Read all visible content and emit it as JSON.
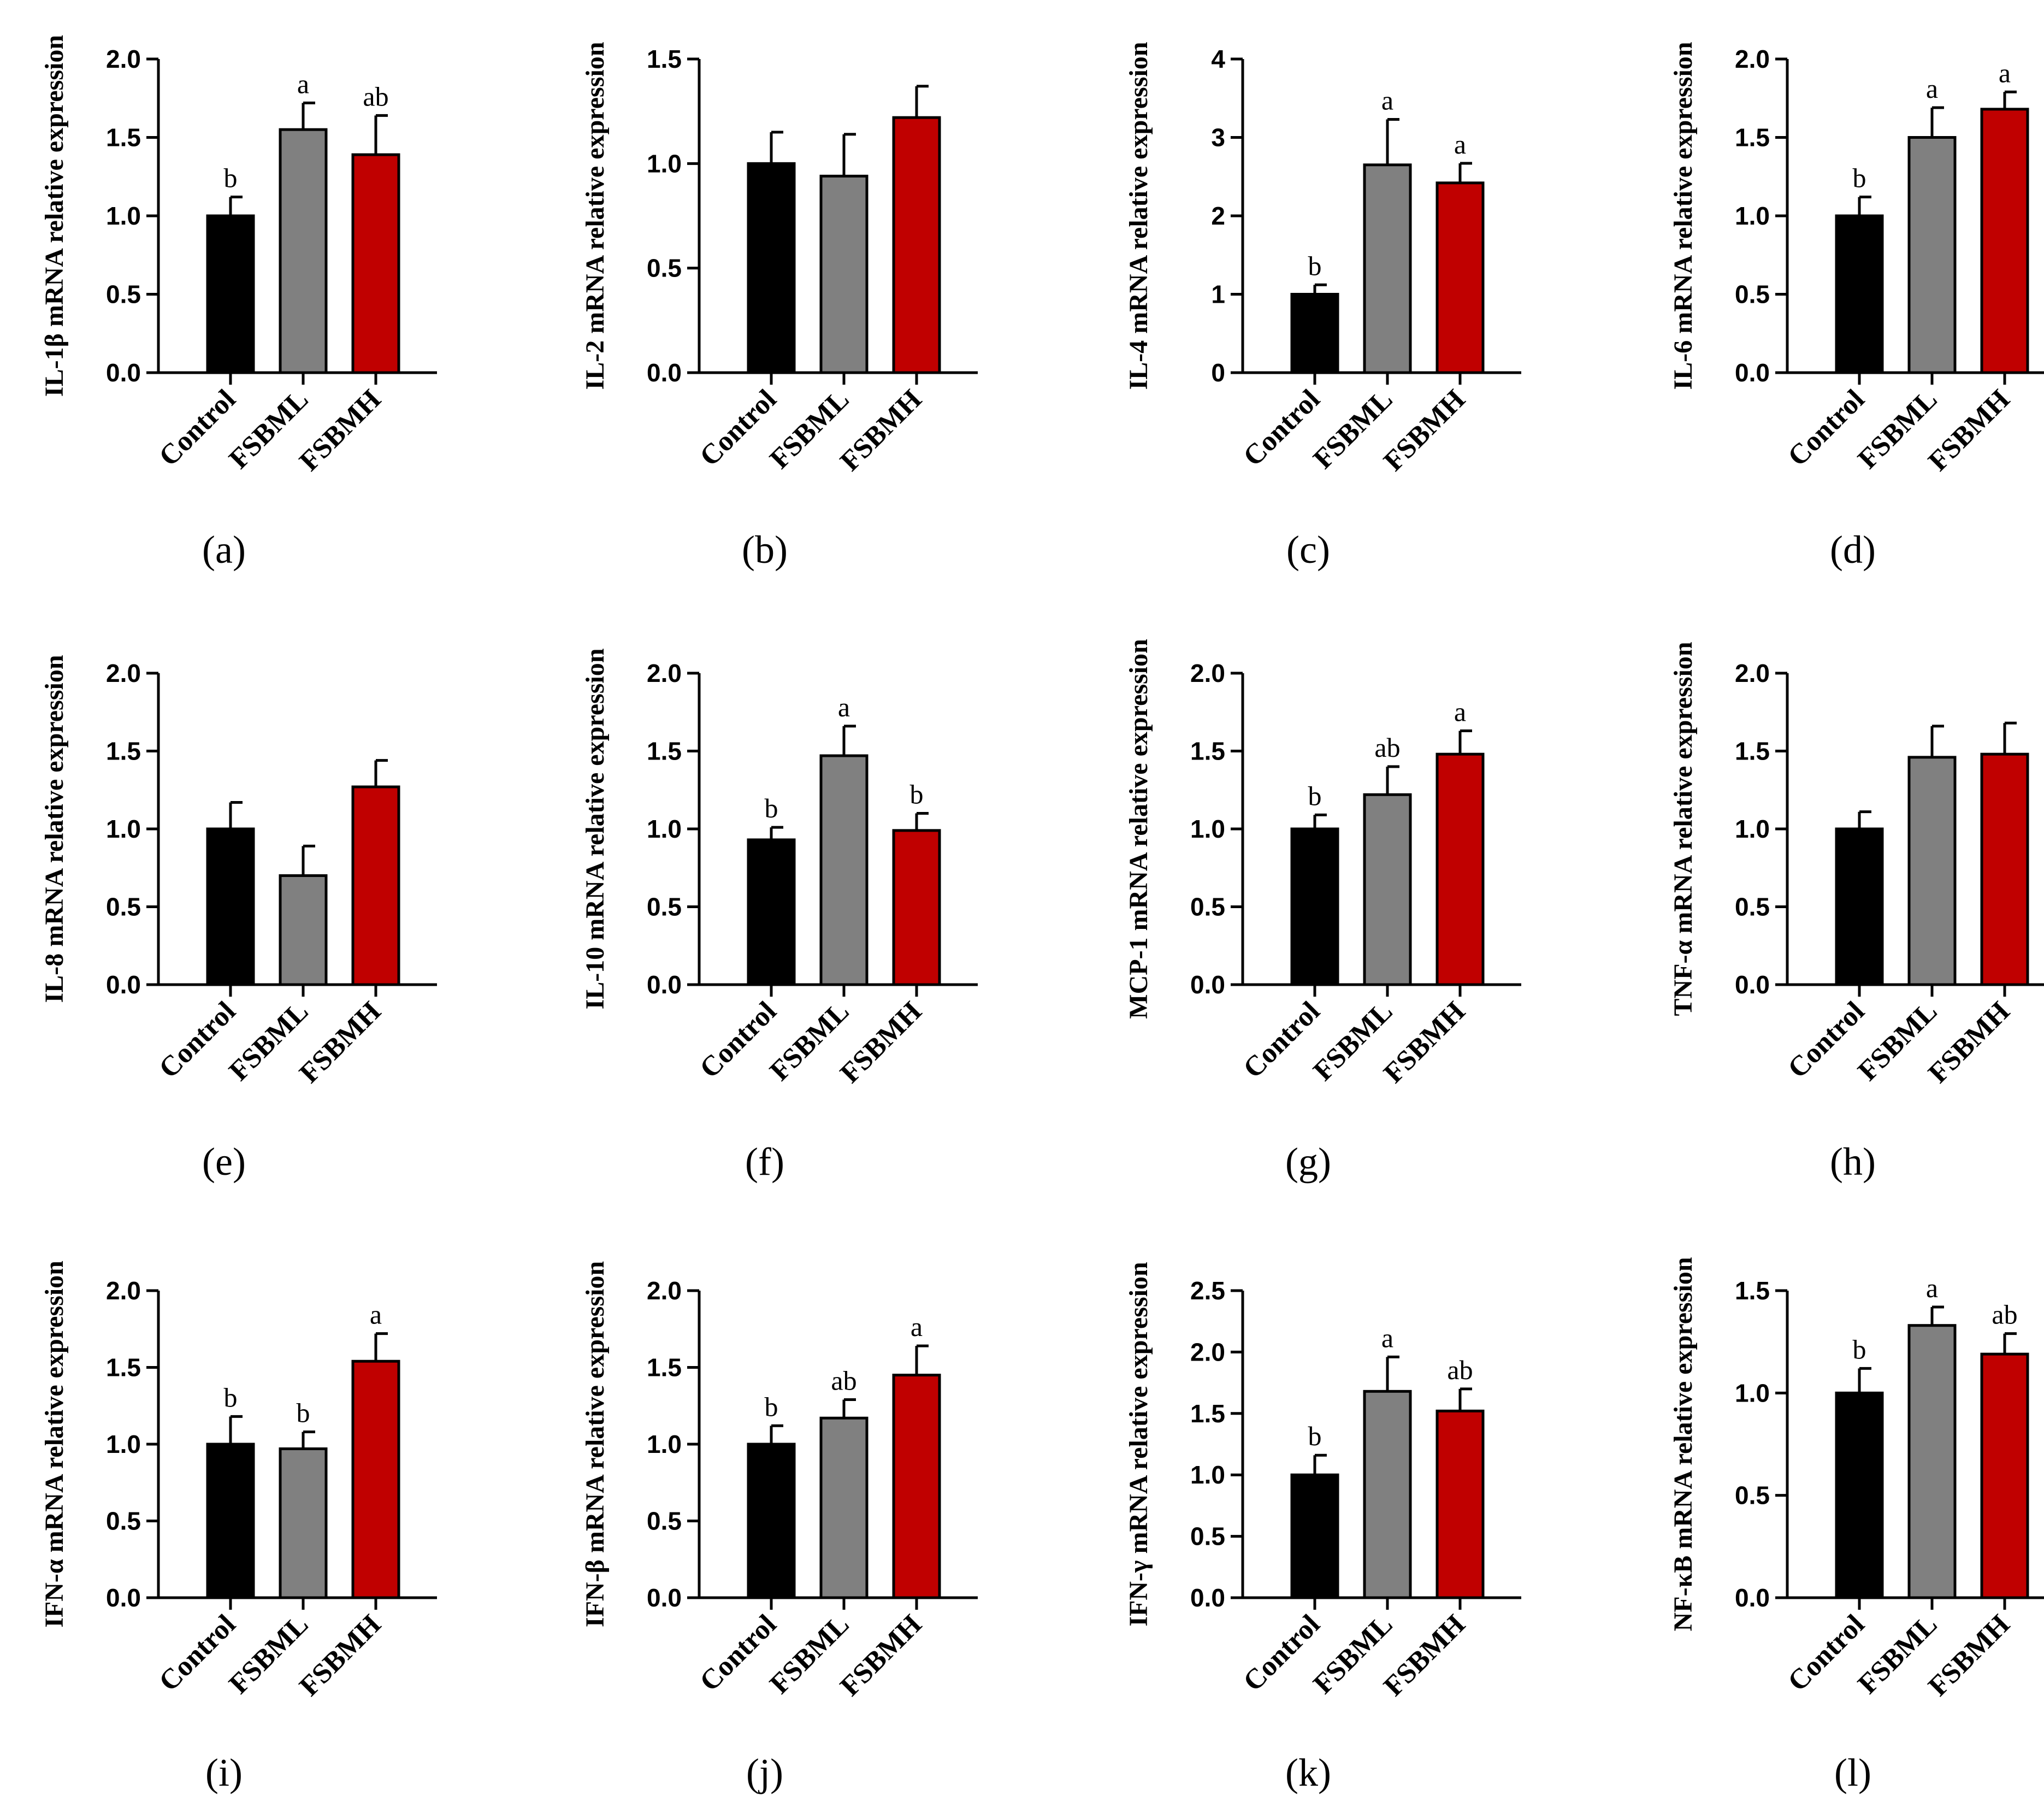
{
  "figure": {
    "bar_colors": [
      "#000000",
      "#808080",
      "#c00000"
    ],
    "edge_color": "#000000"
  },
  "chart_data": [
    {
      "panel": "(a)",
      "letter": "a",
      "type": "bar",
      "ylabel": "IL-1β mRNA relative expression",
      "categories": [
        "Control",
        "FSBML",
        "FSBMH"
      ],
      "values": [
        1.0,
        1.55,
        1.39
      ],
      "errors": [
        0.12,
        0.17,
        0.25
      ],
      "significance": [
        "b",
        "a",
        "ab"
      ],
      "ylim": [
        0,
        2.0
      ],
      "ticks": [
        "0.0",
        "0.5",
        "1.0",
        "1.5",
        "2.0"
      ]
    },
    {
      "panel": "(b)",
      "letter": "b",
      "type": "bar",
      "ylabel": "IL-2 mRNA relative expression",
      "categories": [
        "Control",
        "FSBML",
        "FSBMH"
      ],
      "values": [
        1.0,
        0.94,
        1.22
      ],
      "errors": [
        0.15,
        0.2,
        0.15
      ],
      "significance": [
        "",
        "",
        ""
      ],
      "ylim": [
        0,
        1.5
      ],
      "ticks": [
        "0.0",
        "0.5",
        "1.0",
        "1.5"
      ]
    },
    {
      "panel": "(c)",
      "letter": "c",
      "type": "bar",
      "ylabel": "IL-4 mRNA relative expression",
      "categories": [
        "Control",
        "FSBML",
        "FSBMH"
      ],
      "values": [
        1.0,
        2.65,
        2.42
      ],
      "errors": [
        0.12,
        0.58,
        0.25
      ],
      "significance": [
        "b",
        "a",
        "a"
      ],
      "ylim": [
        0,
        4
      ],
      "ticks": [
        "0",
        "1",
        "2",
        "3",
        "4"
      ]
    },
    {
      "panel": "(d)",
      "letter": "d",
      "type": "bar",
      "ylabel": "IL-6 mRNA relative expression",
      "categories": [
        "Control",
        "FSBML",
        "FSBMH"
      ],
      "values": [
        1.0,
        1.5,
        1.68
      ],
      "errors": [
        0.12,
        0.19,
        0.11
      ],
      "significance": [
        "b",
        "a",
        "a"
      ],
      "ylim": [
        0,
        2.0
      ],
      "ticks": [
        "0.0",
        "0.5",
        "1.0",
        "1.5",
        "2.0"
      ]
    },
    {
      "panel": "(e)",
      "letter": "e",
      "type": "bar",
      "ylabel": "IL-8 mRNA relative expression",
      "categories": [
        "Control",
        "FSBML",
        "FSBMH"
      ],
      "values": [
        1.0,
        0.7,
        1.27
      ],
      "errors": [
        0.17,
        0.19,
        0.17
      ],
      "significance": [
        "",
        "",
        ""
      ],
      "ylim": [
        0,
        2.0
      ],
      "ticks": [
        "0.0",
        "0.5",
        "1.0",
        "1.5",
        "2.0"
      ]
    },
    {
      "panel": "(f)",
      "letter": "f",
      "type": "bar",
      "ylabel": "IL-10 mRNA relative expression",
      "categories": [
        "Control",
        "FSBML",
        "FSBMH"
      ],
      "values": [
        0.93,
        1.47,
        0.99
      ],
      "errors": [
        0.08,
        0.19,
        0.11
      ],
      "significance": [
        "b",
        "a",
        "b"
      ],
      "ylim": [
        0,
        2.0
      ],
      "ticks": [
        "0.0",
        "0.5",
        "1.0",
        "1.5",
        "2.0"
      ]
    },
    {
      "panel": "(g)",
      "letter": "g",
      "type": "bar",
      "ylabel": "MCP-1 mRNA relative expression",
      "categories": [
        "Control",
        "FSBML",
        "FSBMH"
      ],
      "values": [
        1.0,
        1.22,
        1.48
      ],
      "errors": [
        0.09,
        0.18,
        0.15
      ],
      "significance": [
        "b",
        "ab",
        "a"
      ],
      "ylim": [
        0,
        2.0
      ],
      "ticks": [
        "0.0",
        "0.5",
        "1.0",
        "1.5",
        "2.0"
      ]
    },
    {
      "panel": "(h)",
      "letter": "h",
      "type": "bar",
      "ylabel": "TNF-α mRNA relative expression",
      "categories": [
        "Control",
        "FSBML",
        "FSBMH"
      ],
      "values": [
        1.0,
        1.46,
        1.48
      ],
      "errors": [
        0.11,
        0.2,
        0.2
      ],
      "significance": [
        "",
        "",
        ""
      ],
      "ylim": [
        0,
        2.0
      ],
      "ticks": [
        "0.0",
        "0.5",
        "1.0",
        "1.5",
        "2.0"
      ]
    },
    {
      "panel": "(i)",
      "letter": "i",
      "type": "bar",
      "ylabel": "IFN-α mRNA relative expression",
      "categories": [
        "Control",
        "FSBML",
        "FSBMH"
      ],
      "values": [
        1.0,
        0.97,
        1.54
      ],
      "errors": [
        0.18,
        0.11,
        0.18
      ],
      "significance": [
        "b",
        "b",
        "a"
      ],
      "ylim": [
        0,
        2.0
      ],
      "ticks": [
        "0.0",
        "0.5",
        "1.0",
        "1.5",
        "2.0"
      ]
    },
    {
      "panel": "(j)",
      "letter": "j",
      "type": "bar",
      "ylabel": "IFN-β mRNA relative expression",
      "categories": [
        "Control",
        "FSBML",
        "FSBMH"
      ],
      "values": [
        1.0,
        1.17,
        1.45
      ],
      "errors": [
        0.12,
        0.12,
        0.19
      ],
      "significance": [
        "b",
        "ab",
        "a"
      ],
      "ylim": [
        0,
        2.0
      ],
      "ticks": [
        "0.0",
        "0.5",
        "1.0",
        "1.5",
        "2.0"
      ]
    },
    {
      "panel": "(k)",
      "letter": "k",
      "type": "bar",
      "ylabel": "IFN-γ mRNA relative expression",
      "categories": [
        "Control",
        "FSBML",
        "FSBMH"
      ],
      "values": [
        1.0,
        1.68,
        1.52
      ],
      "errors": [
        0.16,
        0.28,
        0.18
      ],
      "significance": [
        "b",
        "a",
        "ab"
      ],
      "ylim": [
        0,
        2.5
      ],
      "ticks": [
        "0.0",
        "0.5",
        "1.0",
        "1.5",
        "2.0",
        "2.5"
      ]
    },
    {
      "panel": "(l)",
      "letter": "l",
      "type": "bar",
      "ylabel": "NF-κB mRNA relative expression",
      "categories": [
        "Control",
        "FSBML",
        "FSBMH"
      ],
      "values": [
        1.0,
        1.33,
        1.19
      ],
      "errors": [
        0.12,
        0.09,
        0.1
      ],
      "significance": [
        "b",
        "a",
        "ab"
      ],
      "ylim": [
        0,
        1.5
      ],
      "ticks": [
        "0.0",
        "0.5",
        "1.0",
        "1.5"
      ]
    }
  ]
}
